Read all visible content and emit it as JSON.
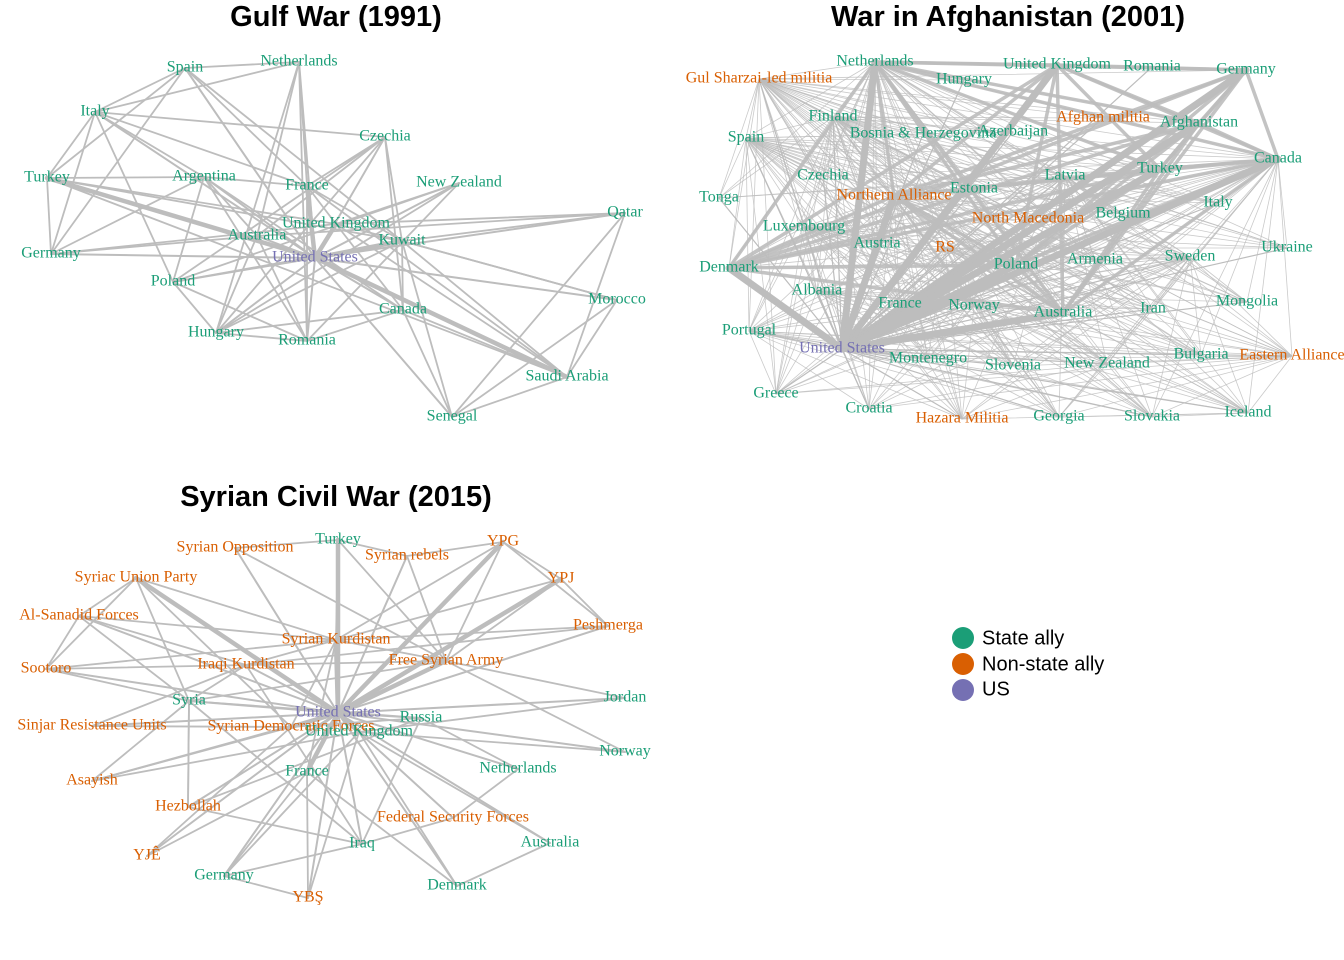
{
  "colors": {
    "state": "#1b9e77",
    "nonstate": "#d95f02",
    "us": "#7570b3",
    "edge": "#bdbdbd"
  },
  "legend": [
    {
      "key": "state",
      "label": "State ally"
    },
    {
      "key": "nonstate",
      "label": "Non-state ally"
    },
    {
      "key": "us",
      "label": "US"
    }
  ],
  "panels": [
    {
      "title": "Gulf War (1991)",
      "hub": "United States",
      "strong": [
        "United Kingdom",
        "France",
        "Saudi Arabia",
        "Turkey",
        "Kuwait"
      ],
      "nodes": [
        {
          "label": "Spain",
          "type": "state"
        },
        {
          "label": "Netherlands",
          "type": "state"
        },
        {
          "label": "Italy",
          "type": "state"
        },
        {
          "label": "Czechia",
          "type": "state"
        },
        {
          "label": "Turkey",
          "type": "state"
        },
        {
          "label": "Argentina",
          "type": "state"
        },
        {
          "label": "France",
          "type": "state"
        },
        {
          "label": "New Zealand",
          "type": "state"
        },
        {
          "label": "Qatar",
          "type": "state"
        },
        {
          "label": "United Kingdom",
          "type": "state"
        },
        {
          "label": "Australia",
          "type": "state"
        },
        {
          "label": "Kuwait",
          "type": "state"
        },
        {
          "label": "Germany",
          "type": "state"
        },
        {
          "label": "United States",
          "type": "us"
        },
        {
          "label": "Poland",
          "type": "state"
        },
        {
          "label": "Morocco",
          "type": "state"
        },
        {
          "label": "Canada",
          "type": "state"
        },
        {
          "label": "Hungary",
          "type": "state"
        },
        {
          "label": "Romania",
          "type": "state"
        },
        {
          "label": "Saudi Arabia",
          "type": "state"
        },
        {
          "label": "Senegal",
          "type": "state"
        }
      ]
    },
    {
      "title": "War in Afghanistan (2001)",
      "hub": "United States",
      "strong": [
        "United Kingdom",
        "Afghanistan",
        "Canada",
        "Germany",
        "Denmark",
        "Turkey",
        "Australia",
        "Poland",
        "Netherlands",
        "Northern Alliance"
      ],
      "nodes": [
        {
          "label": "Netherlands",
          "type": "state"
        },
        {
          "label": "United Kingdom",
          "type": "state"
        },
        {
          "label": "Romania",
          "type": "state"
        },
        {
          "label": "Gul Sharzai-led militia",
          "type": "nonstate"
        },
        {
          "label": "Hungary",
          "type": "state"
        },
        {
          "label": "Germany",
          "type": "state"
        },
        {
          "label": "Finland",
          "type": "state"
        },
        {
          "label": "Afghan militia",
          "type": "nonstate"
        },
        {
          "label": "Afghanistan",
          "type": "state"
        },
        {
          "label": "Spain",
          "type": "state"
        },
        {
          "label": "Bosnia & Herzegovina",
          "type": "state"
        },
        {
          "label": "Azerbaijan",
          "type": "state"
        },
        {
          "label": "Canada",
          "type": "state"
        },
        {
          "label": "Turkey",
          "type": "state"
        },
        {
          "label": "Czechia",
          "type": "state"
        },
        {
          "label": "Latvia",
          "type": "state"
        },
        {
          "label": "Estonia",
          "type": "state"
        },
        {
          "label": "Tonga",
          "type": "state"
        },
        {
          "label": "Northern Alliance",
          "type": "nonstate"
        },
        {
          "label": "Italy",
          "type": "state"
        },
        {
          "label": "Belgium",
          "type": "state"
        },
        {
          "label": "Luxembourg",
          "type": "state"
        },
        {
          "label": "North Macedonia",
          "type": "nonstate"
        },
        {
          "label": "Austria",
          "type": "state"
        },
        {
          "label": "RS",
          "type": "nonstate"
        },
        {
          "label": "Ukraine",
          "type": "state"
        },
        {
          "label": "Armenia",
          "type": "state"
        },
        {
          "label": "Sweden",
          "type": "state"
        },
        {
          "label": "Denmark",
          "type": "state"
        },
        {
          "label": "Poland",
          "type": "state"
        },
        {
          "label": "Albania",
          "type": "state"
        },
        {
          "label": "Mongolia",
          "type": "state"
        },
        {
          "label": "France",
          "type": "state"
        },
        {
          "label": "Norway",
          "type": "state"
        },
        {
          "label": "Iran",
          "type": "state"
        },
        {
          "label": "Australia",
          "type": "state"
        },
        {
          "label": "Portugal",
          "type": "state"
        },
        {
          "label": "United States",
          "type": "us"
        },
        {
          "label": "Bulgaria",
          "type": "state"
        },
        {
          "label": "Eastern Alliance",
          "type": "nonstate"
        },
        {
          "label": "Montenegro",
          "type": "state"
        },
        {
          "label": "Slovenia",
          "type": "state"
        },
        {
          "label": "New Zealand",
          "type": "state"
        },
        {
          "label": "Greece",
          "type": "state"
        },
        {
          "label": "Croatia",
          "type": "state"
        },
        {
          "label": "Iceland",
          "type": "state"
        },
        {
          "label": "Hazara Militia",
          "type": "nonstate"
        },
        {
          "label": "Georgia",
          "type": "state"
        },
        {
          "label": "Slovakia",
          "type": "state"
        }
      ]
    },
    {
      "title": "Syrian Civil War (2015)",
      "hub": "United States",
      "strong": [
        "Turkey",
        "YPG",
        "YPJ",
        "Syrian Kurdistan",
        "Free Syrian Army",
        "United Kingdom",
        "Syrian Democratic Forces",
        "Syriac Union Party",
        "France"
      ],
      "nodes": [
        {
          "label": "Turkey",
          "type": "state"
        },
        {
          "label": "YPG",
          "type": "nonstate"
        },
        {
          "label": "Syrian Opposition",
          "type": "nonstate"
        },
        {
          "label": "Syrian rebels",
          "type": "nonstate"
        },
        {
          "label": "Syriac Union Party",
          "type": "nonstate"
        },
        {
          "label": "YPJ",
          "type": "nonstate"
        },
        {
          "label": "Al-Sanadid Forces",
          "type": "nonstate"
        },
        {
          "label": "Peshmerga",
          "type": "nonstate"
        },
        {
          "label": "Syrian Kurdistan",
          "type": "nonstate"
        },
        {
          "label": "Free Syrian Army",
          "type": "nonstate"
        },
        {
          "label": "Sootoro",
          "type": "nonstate"
        },
        {
          "label": "Iraqi Kurdistan",
          "type": "nonstate"
        },
        {
          "label": "Jordan",
          "type": "state"
        },
        {
          "label": "Syria",
          "type": "state"
        },
        {
          "label": "United States",
          "type": "us"
        },
        {
          "label": "Russia",
          "type": "state"
        },
        {
          "label": "Sinjar Resistance Units",
          "type": "nonstate"
        },
        {
          "label": "Syrian Democratic Forces",
          "type": "nonstate"
        },
        {
          "label": "United Kingdom",
          "type": "state"
        },
        {
          "label": "Norway",
          "type": "state"
        },
        {
          "label": "France",
          "type": "state"
        },
        {
          "label": "Netherlands",
          "type": "state"
        },
        {
          "label": "Asayish",
          "type": "nonstate"
        },
        {
          "label": "Hezbollah",
          "type": "nonstate"
        },
        {
          "label": "Federal Security Forces",
          "type": "nonstate"
        },
        {
          "label": "Iraq",
          "type": "state"
        },
        {
          "label": "Australia",
          "type": "state"
        },
        {
          "label": "YJÊ",
          "type": "nonstate"
        },
        {
          "label": "Germany",
          "type": "state"
        },
        {
          "label": "Denmark",
          "type": "state"
        },
        {
          "label": "YBŞ",
          "type": "nonstate"
        }
      ]
    }
  ]
}
